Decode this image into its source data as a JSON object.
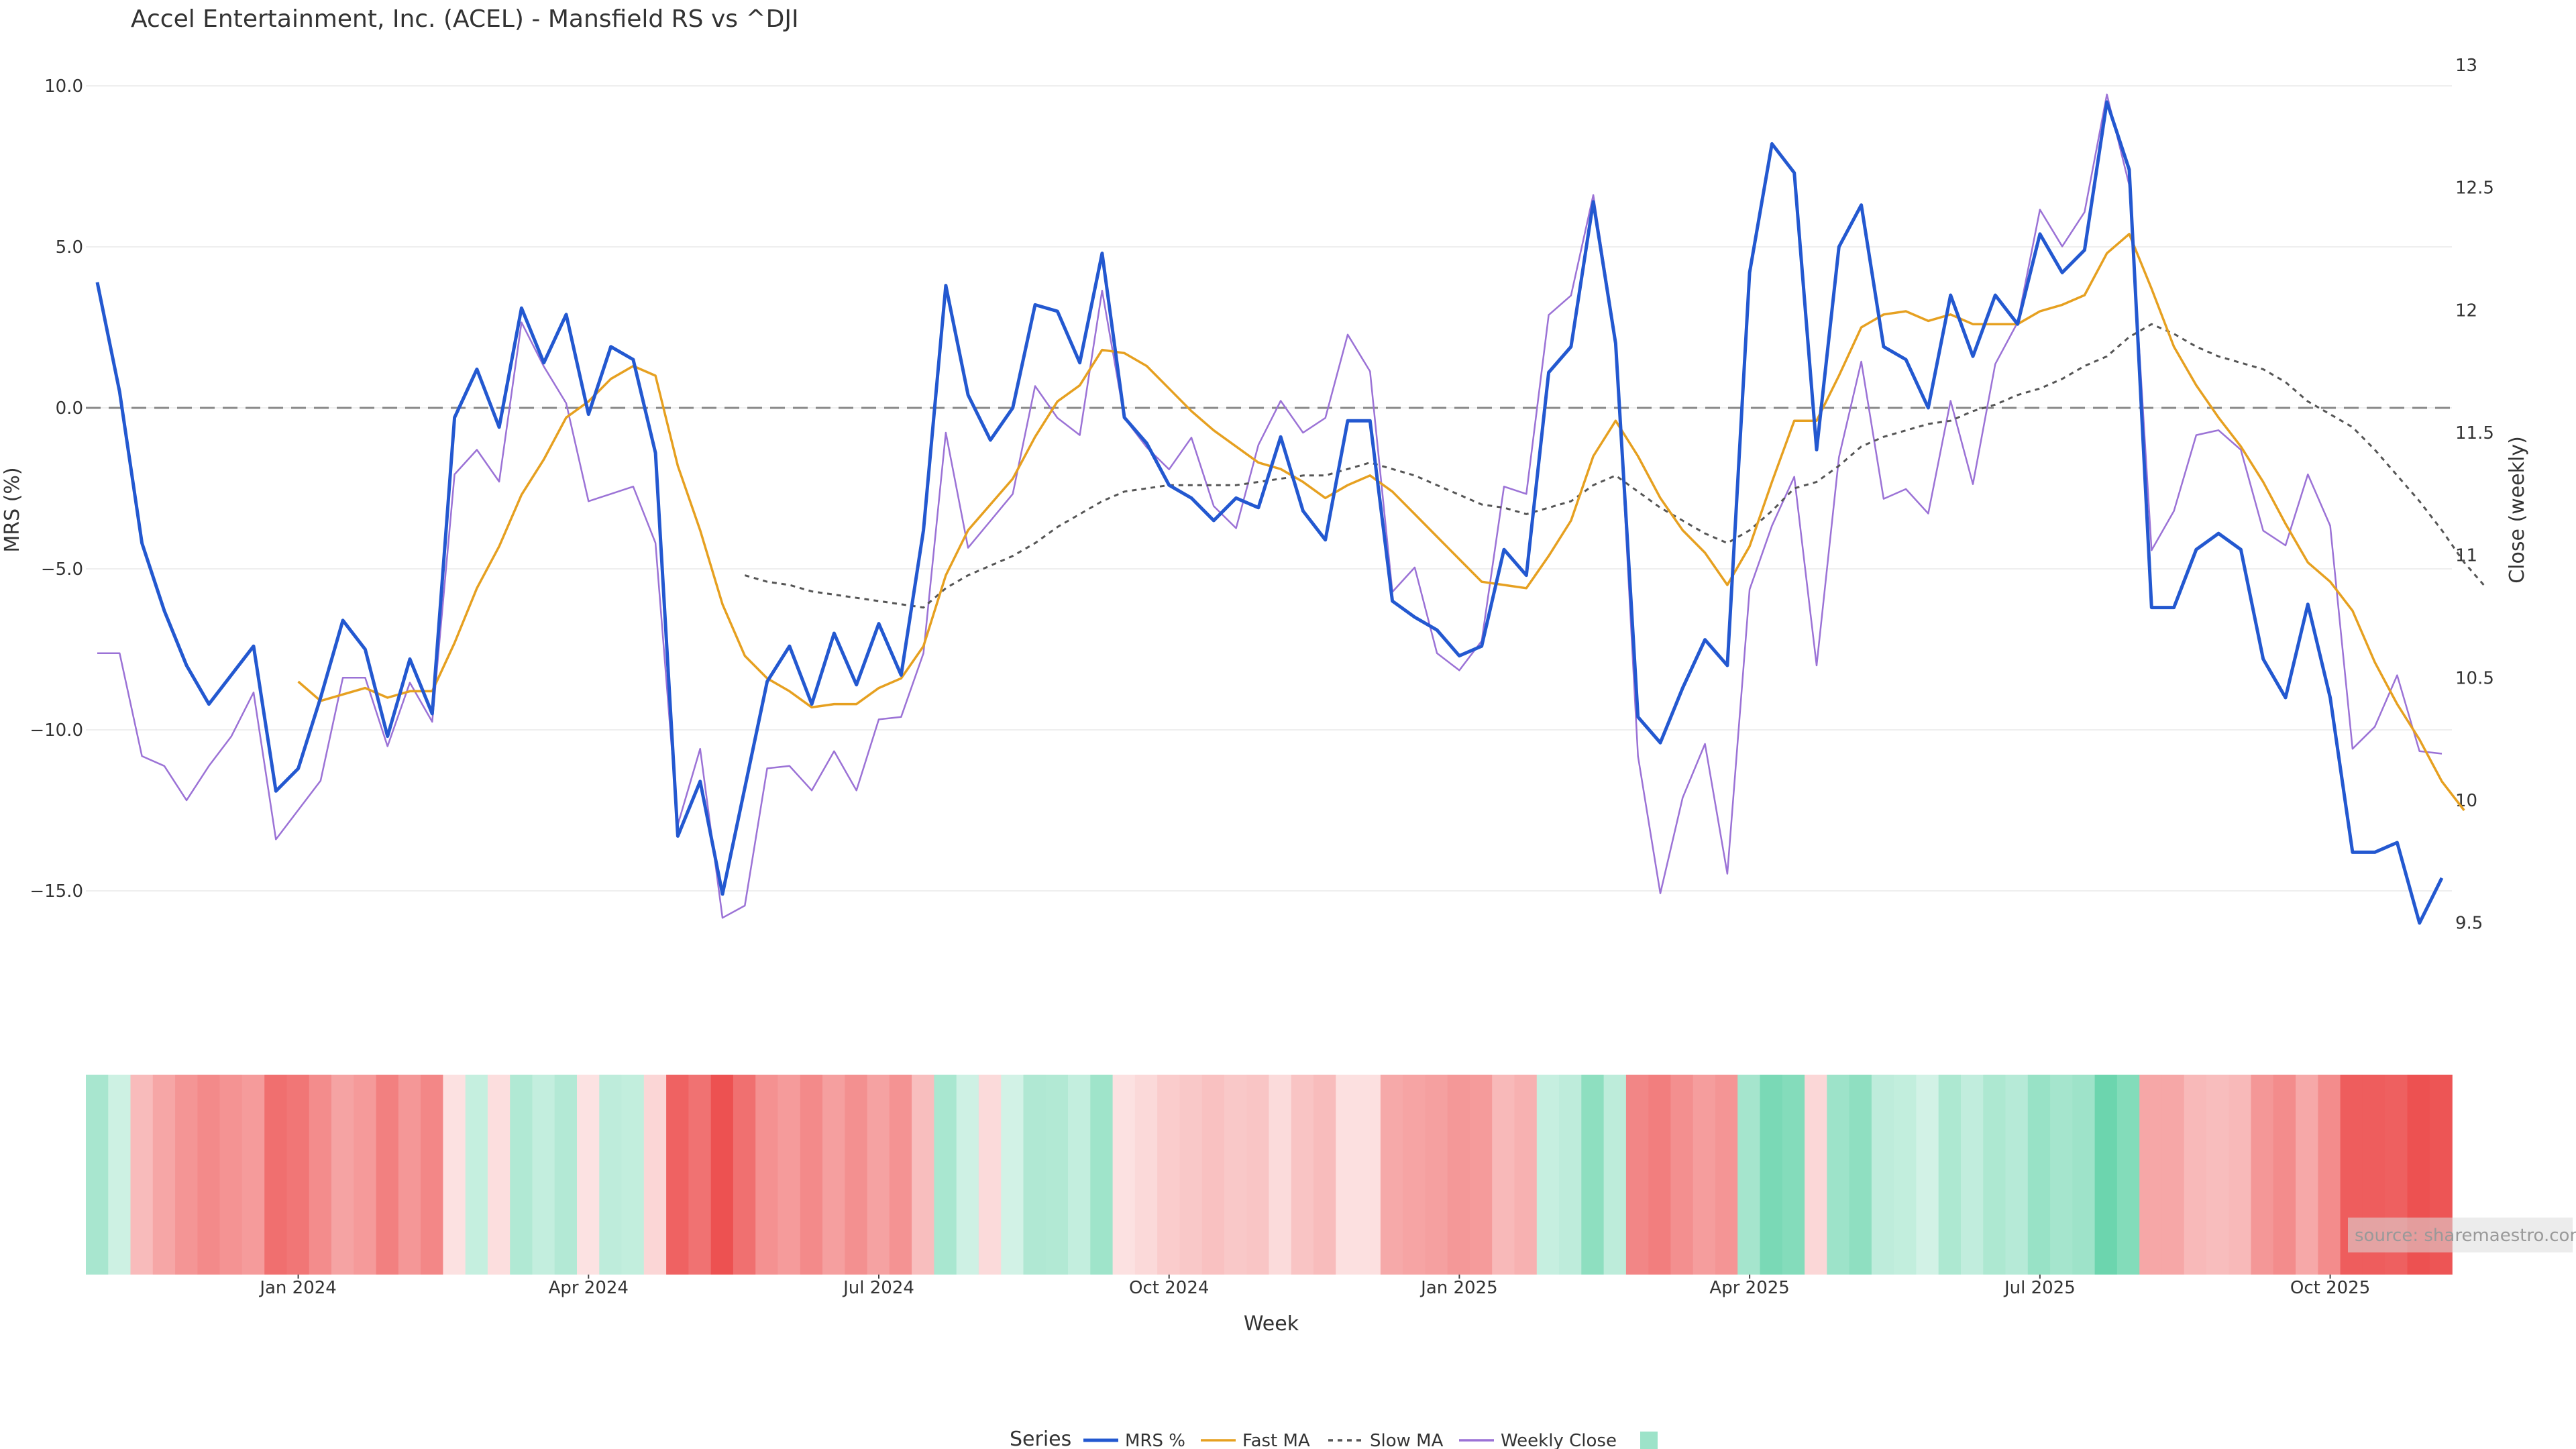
{
  "chart_data": {
    "type": "line",
    "title": "Accel Entertainment, Inc. (ACEL) - Mansfield RS vs ^DJI",
    "xlabel": "Week",
    "ylabel_left": "MRS (%)",
    "ylabel_right": "Close (weekly)",
    "ylim_left": [
      -17.5,
      11
    ],
    "ylim_right": [
      9.35,
      13.05
    ],
    "y_ticks_left": [
      "10.0",
      "5.0",
      "0.0",
      "−5.0",
      "−10.0",
      "−15.0"
    ],
    "y_tick_values_left": [
      10,
      5,
      0,
      -5,
      -10,
      -15
    ],
    "y_ticks_right": [
      "13",
      "12.5",
      "12",
      "11.5",
      "11",
      "10.5",
      "10",
      "9.5"
    ],
    "y_tick_values_right": [
      13,
      12.5,
      12,
      11.5,
      11,
      10.5,
      10,
      9.5
    ],
    "x_ticks": [
      "Jan 2024",
      "Apr 2024",
      "Jul 2024",
      "Oct 2024",
      "Jan 2025",
      "Apr 2025",
      "Jul 2025",
      "Oct 2025"
    ],
    "x_tick_index": [
      9,
      22,
      35,
      48,
      61,
      74,
      87,
      100
    ],
    "reference_line": 0,
    "legend_title": "Series",
    "series": [
      {
        "name": "MRS %",
        "color": "#2358d0",
        "axis": "left",
        "values": [
          3.9,
          0.5,
          -4.2,
          -6.3,
          -8.0,
          -9.2,
          -8.3,
          -7.4,
          -11.9,
          -11.2,
          -9.0,
          -6.6,
          -7.5,
          -10.2,
          -7.8,
          -9.5,
          -0.3,
          1.2,
          -0.6,
          3.1,
          1.4,
          2.9,
          -0.2,
          1.9,
          1.5,
          -1.4,
          -13.3,
          -11.6,
          -15.1,
          -11.8,
          -8.5,
          -7.4,
          -9.2,
          -7.0,
          -8.6,
          -6.7,
          -8.3,
          -3.8,
          3.8,
          0.4,
          -1.0,
          0.0,
          3.2,
          3.0,
          1.4,
          4.8,
          -0.3,
          -1.1,
          -2.4,
          -2.8,
          -3.5,
          -2.8,
          -3.1,
          -0.9,
          -3.2,
          -4.1,
          -0.4,
          -0.4,
          -6.0,
          -6.5,
          -6.9,
          -7.7,
          -7.4,
          -4.4,
          -5.2,
          1.1,
          1.9,
          6.4,
          2.0,
          -9.6,
          -10.4,
          -8.7,
          -7.2,
          -8.0,
          4.2,
          8.2,
          7.3,
          -1.3,
          5.0,
          6.3,
          1.9,
          1.5,
          0.0,
          3.5,
          1.6,
          3.5,
          2.6,
          5.4,
          4.2,
          4.9,
          9.5,
          7.4,
          -6.2,
          -6.2,
          -4.4,
          -3.9,
          -4.4,
          -7.8,
          -9.0,
          -6.1,
          -9.0,
          -13.8,
          -13.8,
          -13.5,
          -16.0,
          -14.6
        ]
      },
      {
        "name": "Fast MA",
        "color": "#e6a020",
        "axis": "left",
        "values": [
          null,
          null,
          null,
          null,
          null,
          null,
          null,
          null,
          null,
          -8.5,
          -9.1,
          -8.9,
          -8.7,
          -9.0,
          -8.8,
          -8.8,
          -7.3,
          -5.6,
          -4.3,
          -2.7,
          -1.6,
          -0.3,
          0.2,
          0.9,
          1.3,
          1.0,
          -1.8,
          -3.8,
          -6.1,
          -7.7,
          -8.4,
          -8.8,
          -9.3,
          -9.2,
          -9.2,
          -8.7,
          -8.4,
          -7.4,
          -5.2,
          -3.8,
          -3.0,
          -2.2,
          -0.9,
          0.2,
          0.7,
          1.8,
          1.7,
          1.3,
          0.6,
          -0.1,
          -0.7,
          -1.2,
          -1.7,
          -1.9,
          -2.3,
          -2.8,
          -2.4,
          -2.1,
          -2.6,
          -3.3,
          -4.0,
          -4.7,
          -5.4,
          -5.5,
          -5.6,
          -4.6,
          -3.5,
          -1.5,
          -0.4,
          -1.5,
          -2.8,
          -3.8,
          -4.5,
          -5.5,
          -4.3,
          -2.3,
          -0.4,
          -0.4,
          1.0,
          2.5,
          2.9,
          3.0,
          2.7,
          2.9,
          2.6,
          2.6,
          2.6,
          3.0,
          3.2,
          3.5,
          4.8,
          5.4,
          3.7,
          1.9,
          0.7,
          -0.3,
          -1.2,
          -2.3,
          -3.6,
          -4.8,
          -5.4,
          -6.3,
          -7.9,
          -9.2,
          -10.3,
          -11.6,
          -12.5
        ]
      },
      {
        "name": "Slow MA",
        "color": "#555555",
        "dash": true,
        "axis": "left",
        "values": [
          null,
          null,
          null,
          null,
          null,
          null,
          null,
          null,
          null,
          null,
          null,
          null,
          null,
          null,
          null,
          null,
          null,
          null,
          null,
          null,
          null,
          null,
          null,
          null,
          null,
          null,
          null,
          null,
          null,
          -5.2,
          -5.4,
          -5.5,
          -5.7,
          -5.8,
          -5.9,
          -6.0,
          -6.1,
          -6.2,
          -5.6,
          -5.2,
          -4.9,
          -4.6,
          -4.2,
          -3.7,
          -3.3,
          -2.9,
          -2.6,
          -2.5,
          -2.4,
          -2.4,
          -2.4,
          -2.4,
          -2.3,
          -2.2,
          -2.1,
          -2.1,
          -1.9,
          -1.7,
          -1.9,
          -2.1,
          -2.4,
          -2.7,
          -3.0,
          -3.1,
          -3.3,
          -3.1,
          -2.9,
          -2.4,
          -2.1,
          -2.6,
          -3.1,
          -3.5,
          -3.9,
          -4.2,
          -3.8,
          -3.2,
          -2.5,
          -2.3,
          -1.8,
          -1.2,
          -0.9,
          -0.7,
          -0.5,
          -0.4,
          -0.1,
          0.1,
          0.4,
          0.6,
          0.9,
          1.3,
          1.6,
          2.2,
          2.6,
          2.3,
          1.9,
          1.6,
          1.4,
          1.2,
          0.8,
          0.2,
          -0.2,
          -0.6,
          -1.3,
          -2.1,
          -2.9,
          -3.8,
          -4.8,
          -5.6
        ]
      },
      {
        "name": "Weekly Close",
        "color": "#9b72d6",
        "axis": "right",
        "values": [
          10.6,
          10.6,
          10.18,
          10.14,
          10.0,
          10.14,
          10.26,
          10.44,
          9.84,
          9.96,
          10.08,
          10.5,
          10.5,
          10.22,
          10.48,
          10.32,
          11.33,
          11.43,
          11.3,
          11.95,
          11.77,
          11.62,
          11.22,
          11.25,
          11.28,
          11.05,
          9.9,
          10.21,
          9.52,
          9.57,
          10.13,
          10.14,
          10.04,
          10.2,
          10.04,
          10.33,
          10.34,
          10.6,
          11.5,
          11.03,
          11.14,
          11.25,
          11.69,
          11.56,
          11.49,
          12.08,
          11.56,
          11.44,
          11.35,
          11.48,
          11.2,
          11.11,
          11.45,
          11.63,
          11.5,
          11.56,
          11.9,
          11.75,
          10.85,
          10.95,
          10.6,
          10.53,
          10.65,
          11.28,
          11.25,
          11.98,
          12.06,
          12.47,
          11.88,
          10.18,
          9.62,
          10.01,
          10.23,
          9.7,
          10.86,
          11.12,
          11.32,
          10.55,
          11.4,
          11.79,
          11.23,
          11.27,
          11.17,
          11.63,
          11.29,
          11.78,
          11.95,
          12.41,
          12.26,
          12.4,
          12.88,
          12.51,
          11.02,
          11.18,
          11.49,
          11.51,
          11.43,
          11.1,
          11.04,
          11.33,
          11.12,
          10.21,
          10.3,
          10.51,
          10.2,
          10.19
        ]
      }
    ],
    "mrs_band": {
      "description": "Weekly MRS heat strip (green = positive MRS, red = negative MRS)",
      "positive_color": "#4ccc9c",
      "negative_color": "#ec4848"
    },
    "legend_entries": [
      "MRS %",
      "Fast MA",
      "Slow MA",
      "Weekly Close"
    ]
  },
  "source_label": "source: sharemaestro.com"
}
